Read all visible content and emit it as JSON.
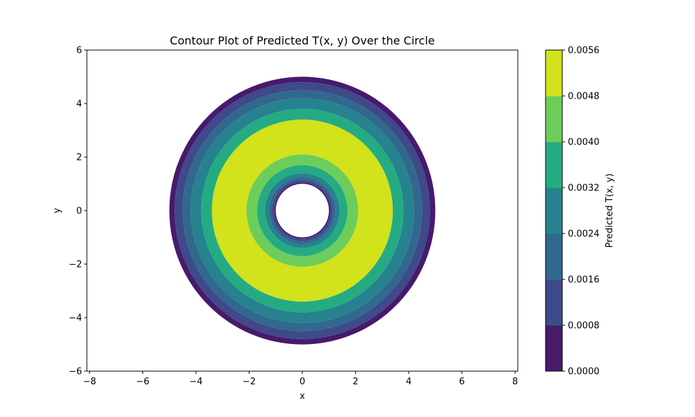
{
  "chart_data": {
    "type": "contour",
    "title": "Contour Plot of Predicted T(x, y) Over the Circle",
    "xlabel": "x",
    "ylabel": "y",
    "xlim": [
      -8.1,
      8.1
    ],
    "ylim": [
      -6,
      6
    ],
    "x_ticks": [
      -8,
      -6,
      -4,
      -2,
      0,
      2,
      4,
      6,
      8
    ],
    "y_ticks": [
      -6,
      -4,
      -2,
      0,
      2,
      4,
      6
    ],
    "x_tick_labels": [
      "−8",
      "−6",
      "−4",
      "−2",
      "0",
      "2",
      "4",
      "6",
      "8"
    ],
    "y_tick_labels": [
      "−6",
      "−4",
      "−2",
      "0",
      "2",
      "4",
      "6"
    ],
    "domain": {
      "shape": "annulus",
      "center": [
        0,
        0
      ],
      "inner_radius": 1.0,
      "outer_radius": 5.0
    },
    "bands": [
      {
        "r_outer": 5.0,
        "r_inner": 4.8,
        "level": 0
      },
      {
        "r_outer": 4.8,
        "r_inner": 4.5,
        "level": 1
      },
      {
        "r_outer": 4.5,
        "r_inner": 4.2,
        "level": 2
      },
      {
        "r_outer": 4.2,
        "r_inner": 3.8,
        "level": 3
      },
      {
        "r_outer": 3.8,
        "r_inner": 3.4,
        "level": 4
      },
      {
        "r_outer": 3.4,
        "r_inner": 2.1,
        "level": 6
      },
      {
        "r_outer": 2.1,
        "r_inner": 1.7,
        "level": 5
      },
      {
        "r_outer": 1.7,
        "r_inner": 1.4,
        "level": 4
      },
      {
        "r_outer": 1.4,
        "r_inner": 1.25,
        "level": 3
      },
      {
        "r_outer": 1.25,
        "r_inner": 1.15,
        "level": 2
      },
      {
        "r_outer": 1.15,
        "r_inner": 1.05,
        "level": 1
      },
      {
        "r_outer": 1.05,
        "r_inner": 1.0,
        "level": 0
      }
    ],
    "colorbar": {
      "label": "Predicted T(x, y)",
      "levels": [
        0.0,
        0.0008,
        0.0016,
        0.0024,
        0.0032,
        0.004,
        0.0048,
        0.0056
      ],
      "tick_labels": [
        "0.0000",
        "0.0008",
        "0.0016",
        "0.0024",
        "0.0032",
        "0.0040",
        "0.0048",
        "0.0056"
      ],
      "colors": [
        "#481a6c",
        "#3e4a89",
        "#31688e",
        "#26828e",
        "#25ab82",
        "#6ccd5a",
        "#d2e21b"
      ]
    }
  }
}
